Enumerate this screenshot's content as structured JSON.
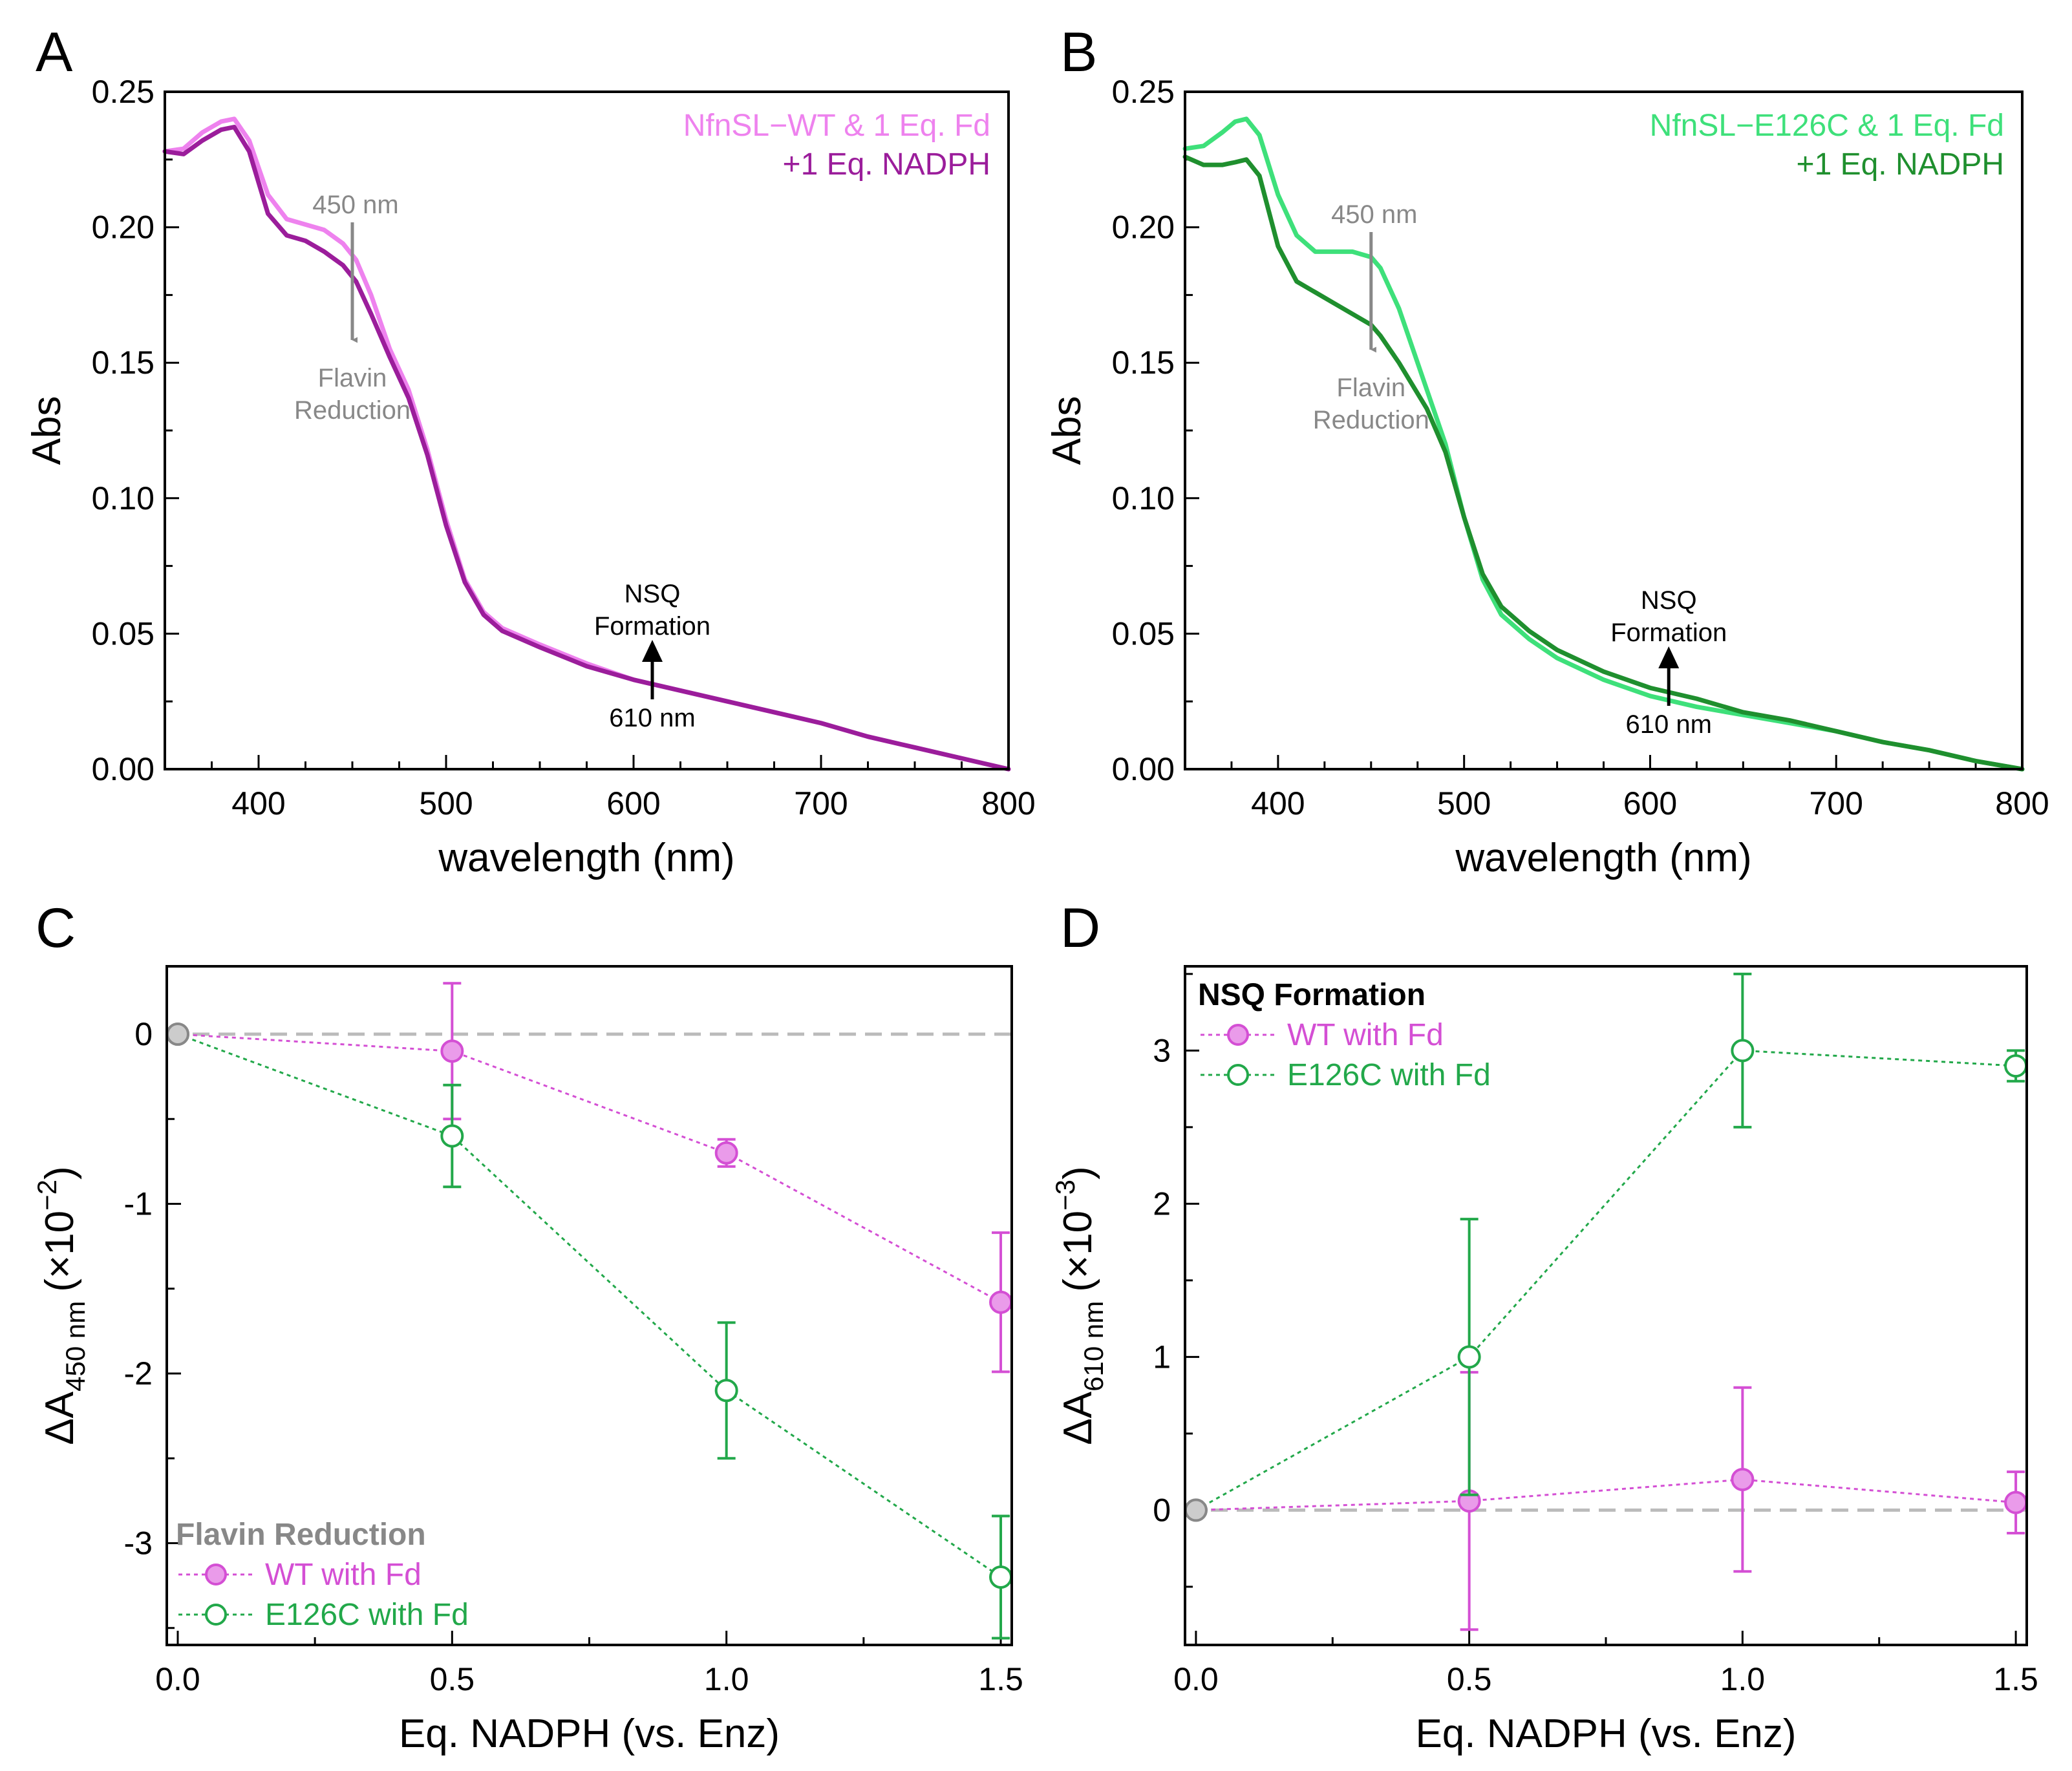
{
  "colors": {
    "wt_light": "#ee82ee",
    "wt_dark": "#9b1d9b",
    "e126c_light": "#3ee07a",
    "e126c_dark": "#1f8f2e",
    "wt_marker": "#d44fd4",
    "wt_fill": "#ea9bea",
    "e126c_marker": "#22a84a",
    "ref_line": "#bbbbbb",
    "annot_gray": "#888888"
  },
  "chart_data": [
    {
      "panel": "A",
      "type": "line",
      "xlabel": "wavelength (nm)",
      "ylabel": "Abs",
      "xlim": [
        350,
        800
      ],
      "ylim": [
        0,
        0.25
      ],
      "xticks": [
        400,
        500,
        600,
        700,
        800
      ],
      "yticks": [
        "0.00",
        "0.05",
        "0.10",
        "0.15",
        "0.20",
        "0.25"
      ],
      "legend": [
        "NfnSL−WT & 1 Eq. Fd",
        "+1 Eq. NADPH"
      ],
      "series": [
        {
          "name": "NfnSL−WT & 1 Eq. Fd",
          "color_key": "wt_light",
          "x": [
            350,
            360,
            370,
            380,
            387,
            395,
            405,
            415,
            425,
            435,
            445,
            452,
            460,
            470,
            480,
            490,
            500,
            510,
            520,
            530,
            550,
            575,
            600,
            625,
            650,
            675,
            700,
            725,
            750,
            775,
            800
          ],
          "y": [
            0.228,
            0.229,
            0.235,
            0.239,
            0.24,
            0.232,
            0.212,
            0.203,
            0.201,
            0.199,
            0.194,
            0.188,
            0.175,
            0.155,
            0.14,
            0.118,
            0.092,
            0.07,
            0.058,
            0.052,
            0.046,
            0.039,
            0.033,
            0.029,
            0.025,
            0.021,
            0.017,
            0.012,
            0.008,
            0.004,
            0.0
          ]
        },
        {
          "name": "+1 Eq. NADPH",
          "color_key": "wt_dark",
          "x": [
            350,
            360,
            370,
            380,
            387,
            395,
            405,
            415,
            425,
            435,
            445,
            452,
            460,
            470,
            480,
            490,
            500,
            510,
            520,
            530,
            550,
            575,
            600,
            625,
            650,
            675,
            700,
            725,
            750,
            775,
            800
          ],
          "y": [
            0.228,
            0.227,
            0.232,
            0.236,
            0.237,
            0.228,
            0.205,
            0.197,
            0.195,
            0.191,
            0.186,
            0.18,
            0.168,
            0.152,
            0.137,
            0.116,
            0.09,
            0.069,
            0.057,
            0.051,
            0.045,
            0.038,
            0.033,
            0.029,
            0.025,
            0.021,
            0.017,
            0.012,
            0.008,
            0.004,
            0.0
          ]
        }
      ],
      "annotations": [
        {
          "text": "450 nm",
          "x": 450
        },
        {
          "text": "Flavin",
          "x": 450
        },
        {
          "text": "Reduction",
          "x": 450
        },
        {
          "text": "NSQ",
          "x": 610
        },
        {
          "text": "Formation",
          "x": 610
        },
        {
          "text": "610 nm",
          "x": 610
        }
      ]
    },
    {
      "panel": "B",
      "type": "line",
      "xlabel": "wavelength (nm)",
      "ylabel": "Abs",
      "xlim": [
        350,
        800
      ],
      "ylim": [
        0,
        0.25
      ],
      "xticks": [
        400,
        500,
        600,
        700,
        800
      ],
      "yticks": [
        "0.00",
        "0.05",
        "0.10",
        "0.15",
        "0.20",
        "0.25"
      ],
      "legend": [
        "NfnSL−E126C & 1 Eq. Fd",
        "+1 Eq. NADPH"
      ],
      "series": [
        {
          "name": "NfnSL−E126C & 1 Eq. Fd",
          "color_key": "e126c_light",
          "x": [
            350,
            360,
            370,
            377,
            383,
            390,
            400,
            410,
            420,
            430,
            440,
            450,
            455,
            465,
            480,
            490,
            500,
            510,
            520,
            535,
            550,
            575,
            600,
            625,
            650,
            675,
            700,
            725,
            750,
            775,
            800
          ],
          "y": [
            0.229,
            0.23,
            0.235,
            0.239,
            0.24,
            0.234,
            0.212,
            0.197,
            0.191,
            0.191,
            0.191,
            0.189,
            0.185,
            0.17,
            0.14,
            0.12,
            0.093,
            0.07,
            0.057,
            0.048,
            0.041,
            0.033,
            0.027,
            0.023,
            0.02,
            0.017,
            0.014,
            0.01,
            0.007,
            0.003,
            0.0
          ]
        },
        {
          "name": "+1 Eq. NADPH",
          "color_key": "e126c_dark",
          "x": [
            350,
            360,
            370,
            377,
            383,
            390,
            400,
            410,
            420,
            430,
            440,
            450,
            455,
            465,
            480,
            490,
            500,
            510,
            520,
            535,
            550,
            575,
            600,
            625,
            650,
            675,
            700,
            725,
            750,
            775,
            800
          ],
          "y": [
            0.226,
            0.223,
            0.223,
            0.224,
            0.225,
            0.219,
            0.193,
            0.18,
            0.176,
            0.172,
            0.168,
            0.164,
            0.16,
            0.15,
            0.133,
            0.117,
            0.093,
            0.072,
            0.06,
            0.051,
            0.044,
            0.036,
            0.03,
            0.026,
            0.021,
            0.018,
            0.014,
            0.01,
            0.007,
            0.003,
            0.0
          ]
        }
      ],
      "annotations": [
        {
          "text": "450 nm",
          "x": 450
        },
        {
          "text": "Flavin",
          "x": 450
        },
        {
          "text": "Reduction",
          "x": 450
        },
        {
          "text": "NSQ",
          "x": 610
        },
        {
          "text": "Formation",
          "x": 610
        },
        {
          "text": "610 nm",
          "x": 610
        }
      ]
    },
    {
      "panel": "C",
      "type": "scatter",
      "xlabel": "Eq. NADPH (vs. Enz)",
      "ylabel_main": "ΔA",
      "ylabel_sub": "450 nm",
      "ylabel_unit_prefix": "(×10",
      "ylabel_unit_exp": "−2",
      "ylabel_unit_suffix": ")",
      "xlim": [
        -0.02,
        1.52
      ],
      "ylim": [
        -3.6,
        0.4
      ],
      "xticks": [
        "0.0",
        "0.5",
        "1.0",
        "1.5"
      ],
      "yticks": [
        "0",
        "-1",
        "-2",
        "-3"
      ],
      "legend_title": "Flavin Reduction",
      "reference_y": 0,
      "series": [
        {
          "name": "WT with Fd",
          "color_key": "wt_marker",
          "filled": true,
          "x": [
            0,
            0.5,
            1.0,
            1.5
          ],
          "y": [
            0,
            -0.1,
            -0.7,
            -1.58
          ],
          "err": [
            0,
            0.4,
            0.08,
            0.41
          ]
        },
        {
          "name": "E126C with Fd",
          "color_key": "e126c_marker",
          "filled": false,
          "x": [
            0,
            0.5,
            1.0,
            1.5
          ],
          "y": [
            0,
            -0.6,
            -2.1,
            -3.2
          ],
          "err": [
            0,
            0.3,
            0.4,
            0.36
          ]
        }
      ]
    },
    {
      "panel": "D",
      "type": "scatter",
      "xlabel": "Eq. NADPH (vs. Enz)",
      "ylabel_main": "ΔA",
      "ylabel_sub": "610 nm",
      "ylabel_unit_prefix": "(×10",
      "ylabel_unit_exp": "−3",
      "ylabel_unit_suffix": ")",
      "xlim": [
        -0.02,
        1.52
      ],
      "ylim": [
        -0.88,
        3.55
      ],
      "xticks": [
        "0.0",
        "0.5",
        "1.0",
        "1.5"
      ],
      "yticks": [
        "0",
        "1",
        "2",
        "3"
      ],
      "legend_title": "NSQ Formation",
      "reference_y": 0,
      "series": [
        {
          "name": "WT with Fd",
          "color_key": "wt_marker",
          "filled": true,
          "x": [
            0,
            0.5,
            1.0,
            1.5
          ],
          "y": [
            0,
            0.06,
            0.2,
            0.05
          ],
          "err": [
            0,
            0.84,
            0.6,
            0.2
          ]
        },
        {
          "name": "E126C with Fd",
          "color_key": "e126c_marker",
          "filled": false,
          "x": [
            0,
            0.5,
            1.0,
            1.5
          ],
          "y": [
            0,
            1.0,
            3.0,
            2.9
          ],
          "err": [
            0,
            0.9,
            0.5,
            0.1
          ]
        }
      ]
    }
  ]
}
